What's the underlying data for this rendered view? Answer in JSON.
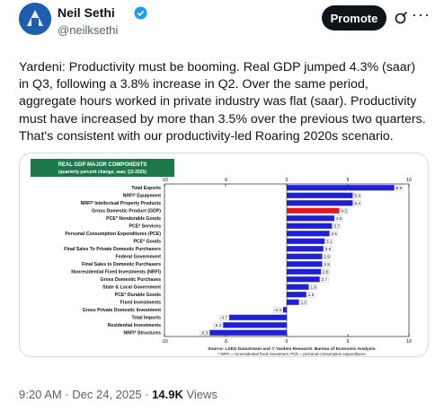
{
  "author": {
    "name": "Neil Sethi",
    "handle": "@neilksethi"
  },
  "actions": {
    "promote_label": "Promote",
    "more_label": "···"
  },
  "tweet": {
    "text": "Yardeni: Productivity must be booming. Real GDP jumped 4.3% (saar) in Q3, following a 3.8% increase in Q2. Over the same period, aggregate hours worked in private industry was flat (saar). Productivity must have increased by more than 3.5% over the previous two quarters. That's consistent with our productivity-led Roaring 2020s scenario.",
    "time": "9:20 AM · Dec 24, 2025 · ",
    "views_count": "14.9K",
    "views_label": " Views"
  },
  "chart_data": {
    "type": "bar",
    "orientation": "horizontal",
    "title_line1": "REAL GDP MAJOR COMPONENTS",
    "title_line2": "(quarterly percent change, saar, Q3-2025)",
    "xlim": [
      -10,
      10
    ],
    "ticks": [
      -10,
      -5,
      0,
      5,
      10
    ],
    "categories": [
      "Total Exports",
      "NRFI* Equipment",
      "NRFI* Intellectual Property Products",
      "Gross Domestic Product (GDP)",
      "PCE* Nondurable Goods",
      "PCE* Services",
      "Personal Consumption Expenditures (PCE)",
      "PCE* Goods",
      "Final Sales To Private Domestic Purchasers",
      "Federal Government",
      "Final Sales to Domestic Purchasers",
      "Nonresidential Fixed Investments (NRFI)",
      "Gross Domestic Purchases",
      "State & Local Government",
      "PCE* Durable Goods",
      "Fixed Investments",
      "Gross Private Domestic Investment",
      "Total Imports",
      "Residential Investments",
      "NRFI* Structures"
    ],
    "values": [
      8.8,
      5.4,
      5.4,
      4.3,
      3.9,
      3.7,
      3.5,
      3.1,
      3.0,
      2.9,
      2.9,
      2.8,
      2.7,
      1.8,
      1.6,
      1.0,
      -0.3,
      -4.7,
      -5.2,
      -6.3
    ],
    "value_labels": [
      "8.8",
      "5.4",
      "5.4",
      "4.3",
      "3.9",
      "3.7",
      "3.5",
      "3.1",
      "3.0",
      "2.9",
      "2.9",
      "2.8",
      "2.7",
      "1.8",
      "1.6",
      "1.0",
      "-0.3",
      "-4.7",
      "-5.2",
      "-6.3"
    ],
    "highlight_index": 3,
    "colors": {
      "bar": "#1f1fd6",
      "highlight": "#e8151b",
      "title_bg": "#1c7a4a",
      "title_text": "#ffffff"
    },
    "source_line1": "Source: LSEG Datastream and © Yardeni Research. Bureau of Economic Analysis.",
    "source_line2": "* NRFI = nonresidential fixed investment. PCE = personal consumption expenditures."
  }
}
